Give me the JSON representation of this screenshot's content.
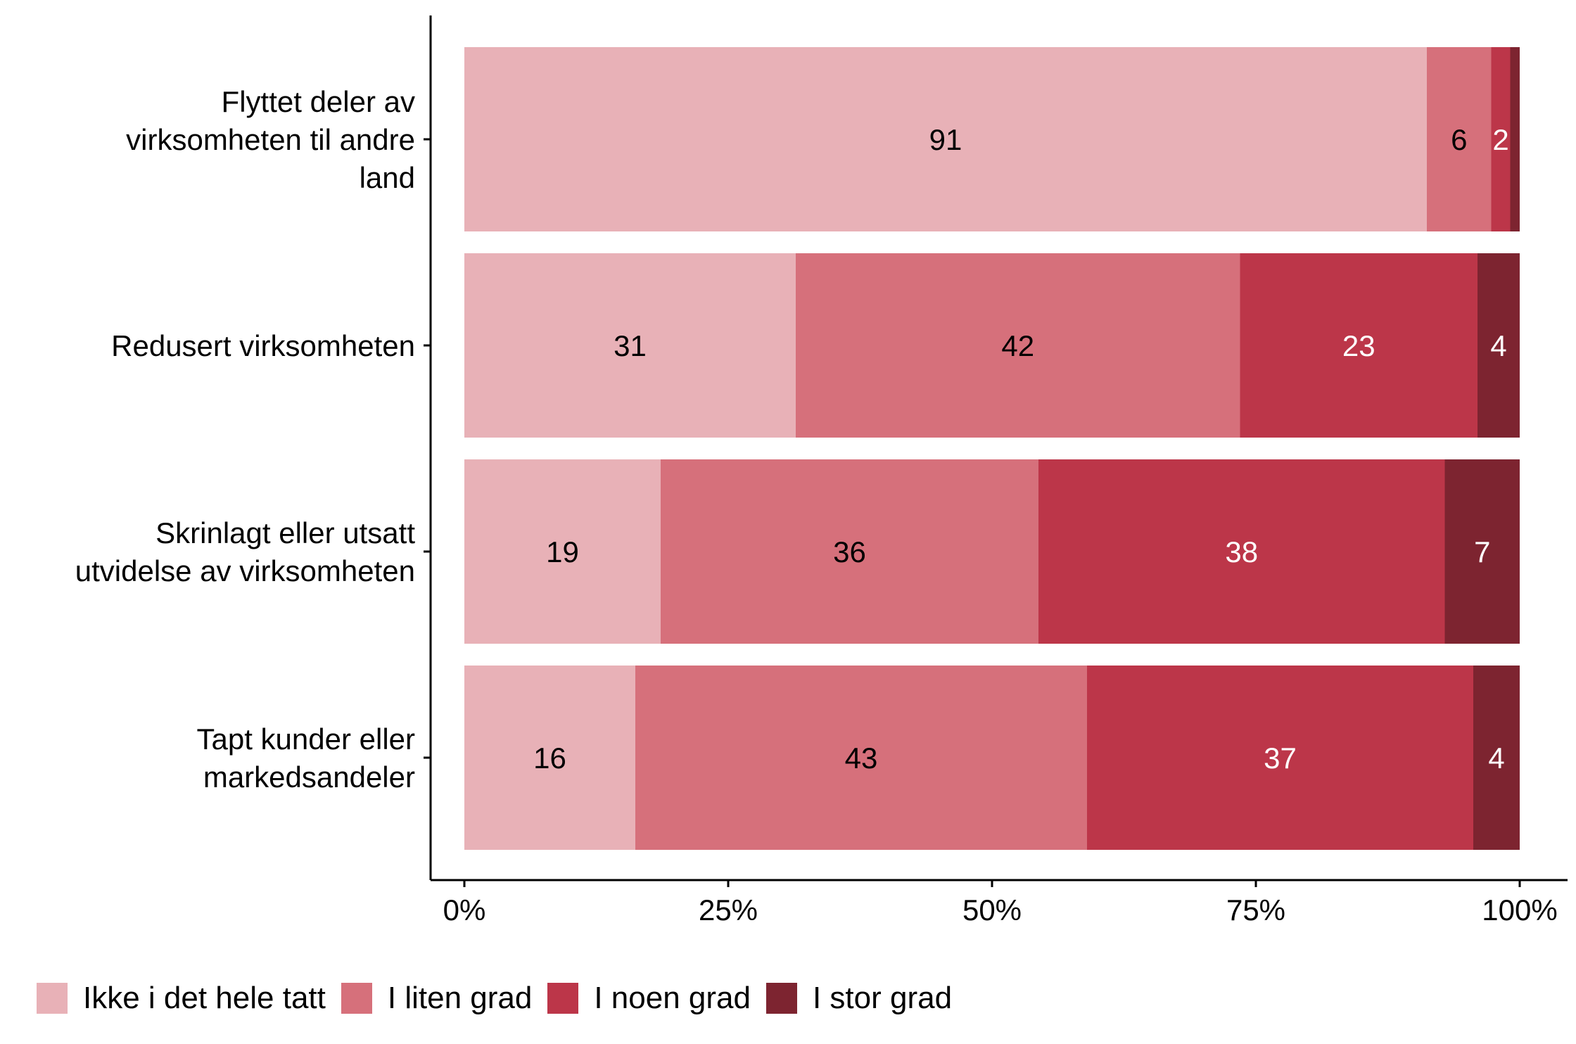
{
  "chart_data": {
    "type": "bar",
    "orientation": "horizontal",
    "stacked": true,
    "categories": [
      [
        "Flyttet deler av",
        "virksomheten til andre",
        "land"
      ],
      [
        "Redusert virksomheten"
      ],
      [
        "Skrinlagt eller utsatt",
        "utvidelse av virksomheten"
      ],
      [
        "Tapt kunder eller",
        "markedsandeler"
      ]
    ],
    "series": [
      {
        "name": "Ikke i det hele tatt",
        "color": "#E8B1B7",
        "label_color": "#000000",
        "values": [
          91.2,
          31.4,
          18.6,
          16.2
        ],
        "labels": [
          "91",
          "31",
          "19",
          "16"
        ]
      },
      {
        "name": "I liten grad",
        "color": "#D6707B",
        "label_color": "#000000",
        "values": [
          6.1,
          42.1,
          35.8,
          42.8
        ],
        "labels": [
          "6",
          "42",
          "36",
          "43"
        ]
      },
      {
        "name": "I noen grad",
        "color": "#BC3649",
        "label_color": "#FFFFFF",
        "values": [
          1.8,
          22.5,
          38.5,
          36.6
        ],
        "labels": [
          "2",
          "23",
          "38",
          "37"
        ]
      },
      {
        "name": "I stor grad",
        "color": "#7D2430",
        "label_color": "#FFFFFF",
        "values": [
          0.9,
          4.0,
          7.1,
          4.4
        ],
        "labels": [
          "",
          "4",
          "7",
          "4"
        ]
      }
    ],
    "xticks": [
      "0%",
      "25%",
      "50%",
      "75%",
      "100%"
    ],
    "xlim": [
      0,
      100
    ],
    "xlabel": "",
    "ylabel": "",
    "legend_position": "bottom",
    "grid": false
  }
}
